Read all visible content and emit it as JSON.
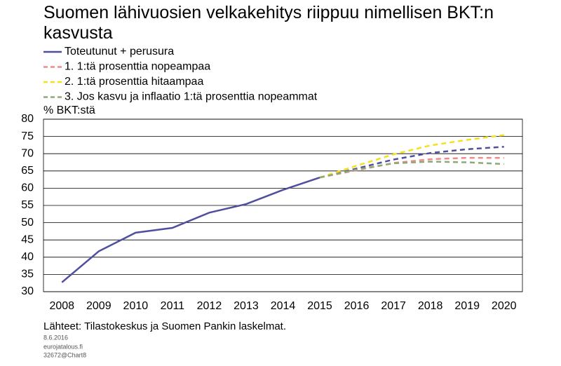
{
  "chart_data": {
    "type": "line",
    "title": "Suomen lähivuosien velkakehitys riippuu nimellisen BKT:n kasvusta",
    "y_label": "% BKT:stä",
    "categories": [
      "2008",
      "2009",
      "2010",
      "2011",
      "2012",
      "2013",
      "2014",
      "2015",
      "2016",
      "2017",
      "2018",
      "2019",
      "2020"
    ],
    "forecast_start": "2015",
    "series": [
      {
        "name": "Toteutunut + perusura",
        "color": "#4f4f9f",
        "values": [
          32.7,
          41.7,
          47.1,
          48.5,
          52.9,
          55.4,
          59.5,
          63.1,
          65.7,
          68.3,
          70.2,
          71.3,
          72.0
        ]
      },
      {
        "name": "1. 1:tä prosenttia nopeampaa",
        "color": "#f08a8a",
        "values": [
          null,
          null,
          null,
          null,
          null,
          null,
          null,
          63.1,
          65.2,
          67.3,
          68.4,
          68.8,
          68.8
        ]
      },
      {
        "name": "2. 1:tä prosenttia hitaampaa",
        "color": "#f5e11a",
        "values": [
          null,
          null,
          null,
          null,
          null,
          null,
          null,
          63.1,
          66.5,
          69.8,
          72.4,
          74.0,
          75.4
        ]
      },
      {
        "name": "3. Jos kasvu ja inflaatio 1:tä prosenttia nopeammat",
        "color": "#8fa878",
        "values": [
          null,
          null,
          null,
          null,
          null,
          null,
          null,
          63.1,
          65.4,
          67.2,
          67.7,
          67.5,
          67.0
        ]
      }
    ],
    "ylim": [
      30,
      80
    ],
    "yticks": [
      30,
      35,
      40,
      45,
      50,
      55,
      60,
      65,
      70,
      75,
      80
    ],
    "grid": true,
    "source": "Lähteet: Tilastokeskus ja Suomen Pankin laskelmat.",
    "notes": [
      "8.6.2016",
      "eurojatalous.fi",
      "32672@Chart8"
    ]
  }
}
